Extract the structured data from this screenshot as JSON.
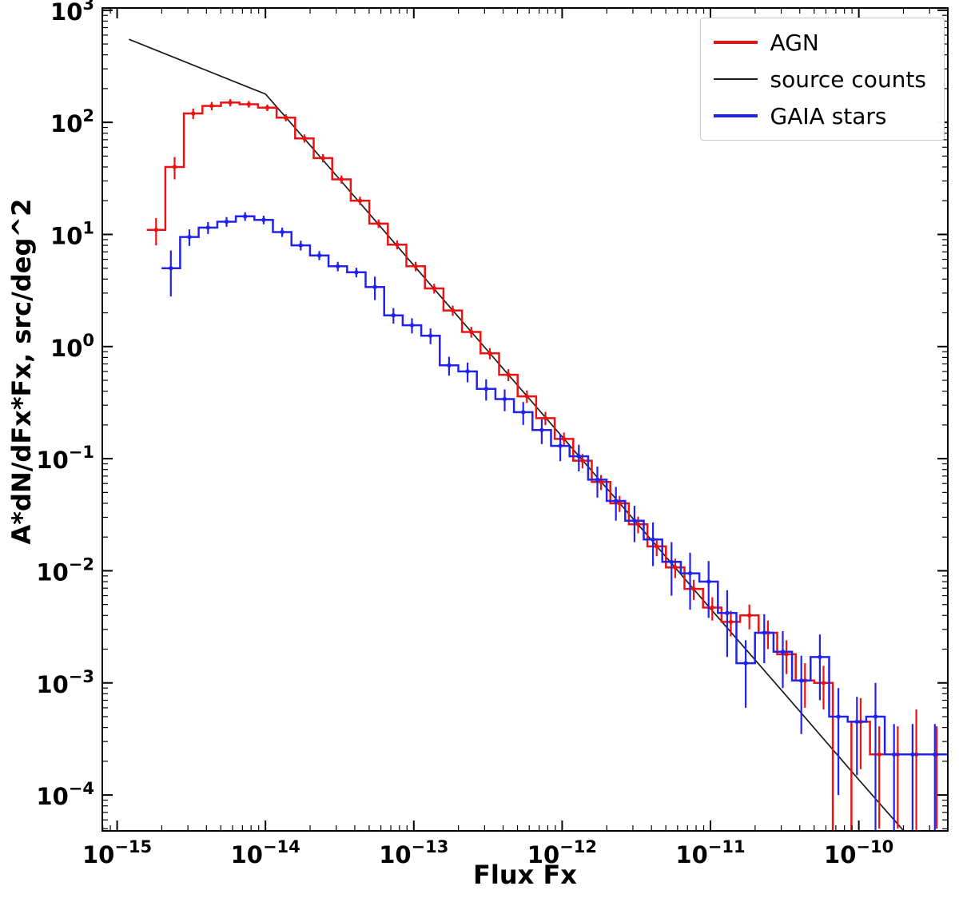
{
  "chart_data": {
    "type": "line",
    "subtype": "log-log step histograms with error bars plus model line",
    "title": "",
    "xlabel": "Flux Fx",
    "ylabel": "A*dN/dFx*Fx, src/deg^2",
    "xlim_log": [
      -15.1,
      -9.4
    ],
    "ylim_log": [
      -4.32,
      3.02
    ],
    "x_tick_exponents": [
      -15,
      -14,
      -13,
      -12,
      -11,
      -10
    ],
    "y_tick_exponents": [
      -4,
      -3,
      -2,
      -1,
      0,
      1,
      2,
      3
    ],
    "grid": false,
    "legend_position": "upper right",
    "frame_color": "#000000",
    "legend_border_color": "#c9c9c9",
    "series": [
      {
        "name": "AGN",
        "type": "hist",
        "color": "#ee1111",
        "log_edges": [
          -14.8,
          -14.675,
          -14.55,
          -14.425,
          -14.3,
          -14.175,
          -14.05,
          -13.925,
          -13.8,
          -13.675,
          -13.55,
          -13.425,
          -13.3,
          -13.175,
          -13.05,
          -12.925,
          -12.8,
          -12.675,
          -12.55,
          -12.425,
          -12.3,
          -12.175,
          -12.05,
          -11.925,
          -11.8,
          -11.675,
          -11.55,
          -11.425,
          -11.3,
          -11.175,
          -11.05,
          -10.925,
          -10.8,
          -10.675,
          -10.55,
          -10.425,
          -10.3,
          -10.175,
          -10.05,
          -9.925,
          -9.8,
          -9.675,
          -9.55,
          -9.4
        ],
        "values": [
          11,
          40,
          120,
          140,
          150,
          145,
          135,
          110,
          72,
          48,
          31,
          20,
          12.5,
          8.1,
          5.2,
          3.3,
          2.1,
          1.35,
          0.87,
          0.56,
          0.36,
          0.23,
          0.15,
          0.096,
          0.062,
          0.04,
          0.026,
          0.0165,
          0.0107,
          0.0069,
          0.0047,
          0.0035,
          0.004,
          0.0028,
          0.0018,
          0.00105,
          0.001,
          1e-05,
          0.00045,
          0.00023,
          0.00023,
          0.00023,
          0.00023
        ],
        "yerr": [
          3,
          9,
          13,
          12,
          11,
          10,
          9,
          8,
          6,
          4,
          2.6,
          1.7,
          1.1,
          0.75,
          0.5,
          0.33,
          0.22,
          0.15,
          0.1,
          0.068,
          0.046,
          0.031,
          0.021,
          0.014,
          0.0095,
          0.0065,
          0.0044,
          0.003,
          0.0021,
          0.0014,
          0.0011,
          0.0009,
          0.001,
          0.0008,
          0.0006,
          0.00045,
          0.00042,
          0,
          0.00028,
          0.00018,
          0.00018,
          0.00035,
          0.00018
        ]
      },
      {
        "name": "source counts",
        "type": "line",
        "color": "#1c1c1c",
        "log_x": [
          -14.92,
          -14.6,
          -14.3,
          -14.1,
          -14.0,
          -13.8,
          -13.5,
          -13.0,
          -12.5,
          -12.0,
          -11.5,
          -11.0,
          -10.5,
          -10.0,
          -9.67
        ],
        "y": [
          550,
          372,
          258,
          202,
          179,
          89,
          31,
          5.3,
          0.91,
          0.157,
          0.027,
          0.0046,
          0.0008,
          0.000137,
          4.35e-05
        ]
      },
      {
        "name": "GAIA stars",
        "type": "hist",
        "color": "#2222ee",
        "log_edges": [
          -14.7,
          -14.575,
          -14.45,
          -14.325,
          -14.2,
          -14.075,
          -13.95,
          -13.825,
          -13.7,
          -13.575,
          -13.45,
          -13.325,
          -13.2,
          -13.075,
          -12.95,
          -12.825,
          -12.7,
          -12.575,
          -12.45,
          -12.325,
          -12.2,
          -12.075,
          -11.95,
          -11.825,
          -11.7,
          -11.575,
          -11.45,
          -11.325,
          -11.2,
          -11.075,
          -10.95,
          -10.825,
          -10.7,
          -10.575,
          -10.45,
          -10.325,
          -10.2,
          -10.075,
          -9.95,
          -9.825,
          -9.7,
          -9.575,
          -9.4
        ],
        "values": [
          5,
          9.5,
          11.5,
          13,
          14.5,
          13.5,
          10.5,
          8,
          6.5,
          5.2,
          4.6,
          3.4,
          1.9,
          1.55,
          1.25,
          0.68,
          0.6,
          0.42,
          0.34,
          0.26,
          0.18,
          0.13,
          0.105,
          0.065,
          0.042,
          0.028,
          0.019,
          0.012,
          0.0095,
          0.008,
          0.0042,
          0.0015,
          0.0028,
          0.0019,
          0.00105,
          0.0017,
          0.0005,
          0.00045,
          0.0005,
          0.00023,
          0.00023,
          0.00023
        ],
        "yerr": [
          2.2,
          1.6,
          1.4,
          1.3,
          1.3,
          1.2,
          1.0,
          0.8,
          0.6,
          0.5,
          0.45,
          0.8,
          0.3,
          0.24,
          0.2,
          0.13,
          0.12,
          0.09,
          0.075,
          0.06,
          0.045,
          0.035,
          0.028,
          0.02,
          0.014,
          0.01,
          0.008,
          0.006,
          0.005,
          0.0042,
          0.0025,
          0.0009,
          0.0013,
          0.001,
          0.0007,
          0.001,
          0.0004,
          0.0003,
          0.0005,
          0.0002,
          0.0002,
          0.0002
        ]
      }
    ]
  }
}
